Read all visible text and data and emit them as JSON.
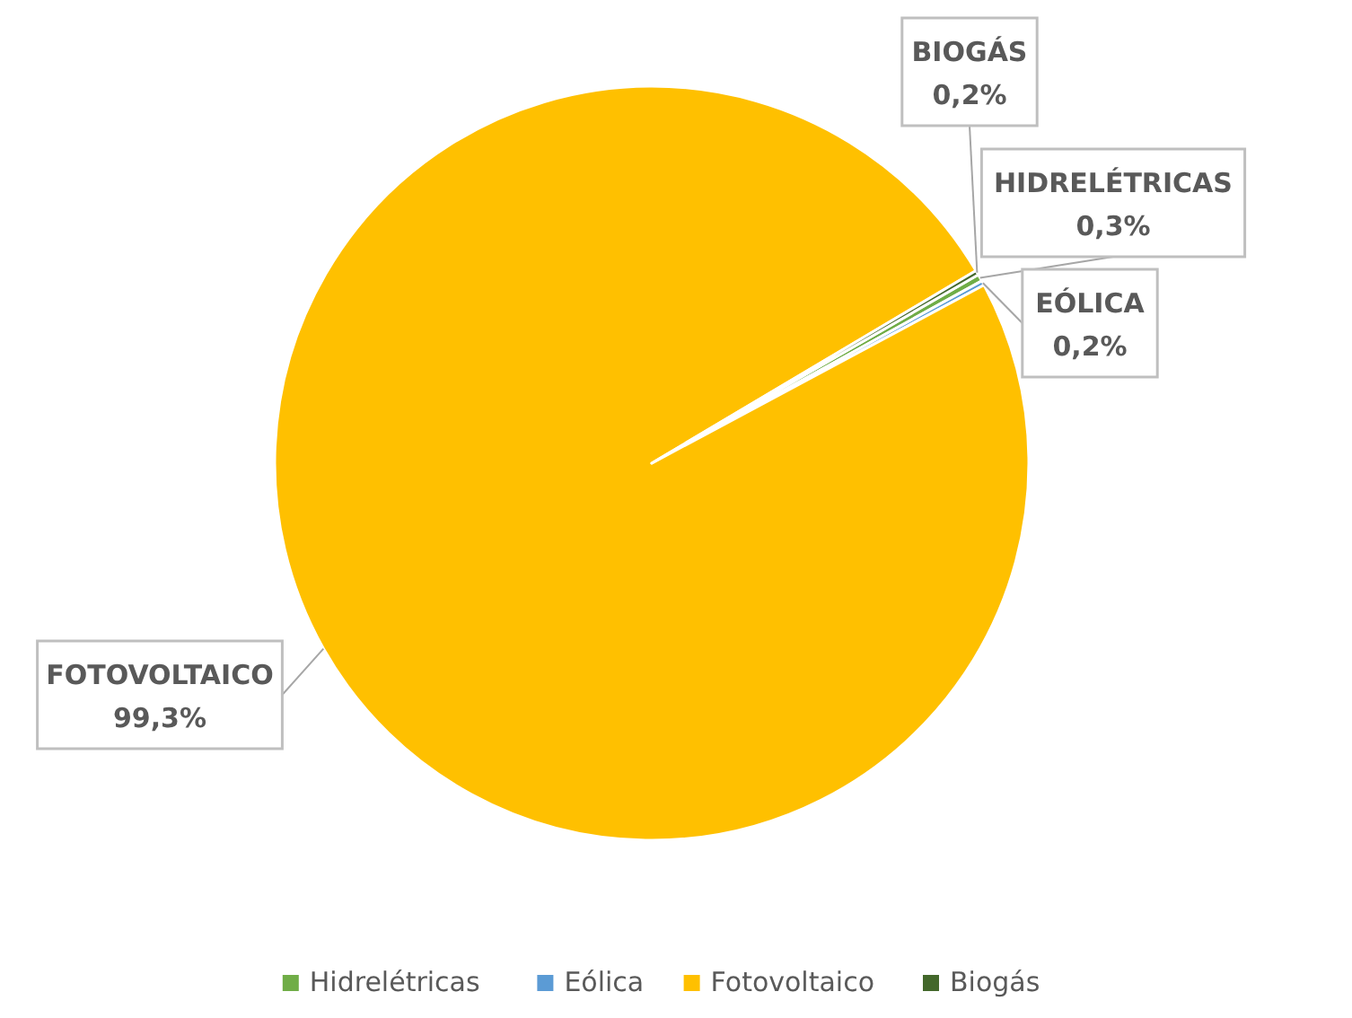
{
  "chart_data": {
    "type": "pie",
    "categories": [
      "Hidrelétricas",
      "Eólica",
      "Fotovoltaico",
      "Biogás"
    ],
    "values": [
      0.3,
      0.2,
      99.3,
      0.2
    ],
    "colors": [
      "#70ad47",
      "#5b9bd5",
      "#ffc000",
      "#43682b"
    ],
    "value_labels": [
      "0,3%",
      "0,2%",
      "99,3%",
      "0,2%"
    ],
    "annotations": [
      "HIDRELÉTRICAS",
      "EÓLICA",
      "FOTOVOLTAICO",
      "BIOGÁS"
    ],
    "legend": "bottom"
  }
}
